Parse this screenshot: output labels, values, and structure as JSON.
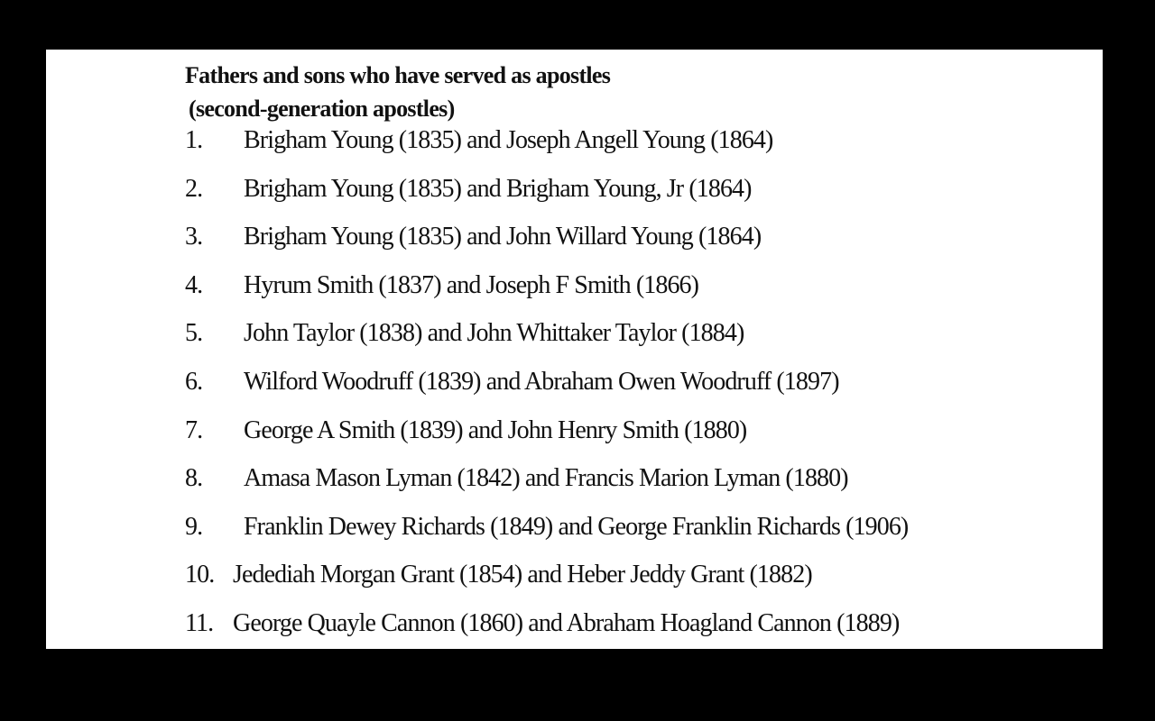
{
  "title_line1": "Fathers and sons who have served as apostles",
  "title_line2": "(second-generation apostles)",
  "items": [
    {
      "num": "1.",
      "text": "Brigham Young (1835) and Joseph Angell Young (1864)"
    },
    {
      "num": "2.",
      "text": "Brigham Young (1835) and Brigham Young, Jr (1864)"
    },
    {
      "num": "3.",
      "text": "Brigham Young (1835) and John Willard Young (1864)"
    },
    {
      "num": "4.",
      "text": "Hyrum Smith (1837) and Joseph F Smith (1866)"
    },
    {
      "num": "5.",
      "text": "John Taylor (1838) and John Whittaker Taylor (1884)"
    },
    {
      "num": "6.",
      "text": "Wilford Woodruff (1839) and Abraham Owen Woodruff (1897)"
    },
    {
      "num": "7.",
      "text": "George A Smith (1839) and John Henry Smith (1880)"
    },
    {
      "num": "8.",
      "text": "Amasa Mason Lyman (1842) and Francis Marion Lyman (1880)"
    },
    {
      "num": "9.",
      "text": "Franklin Dewey Richards (1849) and George Franklin Richards (1906)"
    },
    {
      "num": "10.",
      "text": "Jedediah Morgan Grant (1854) and Heber Jeddy Grant (1882)"
    },
    {
      "num": "11.",
      "text": "George Quayle Cannon (1860) and Abraham Hoagland Cannon (1889)"
    }
  ]
}
